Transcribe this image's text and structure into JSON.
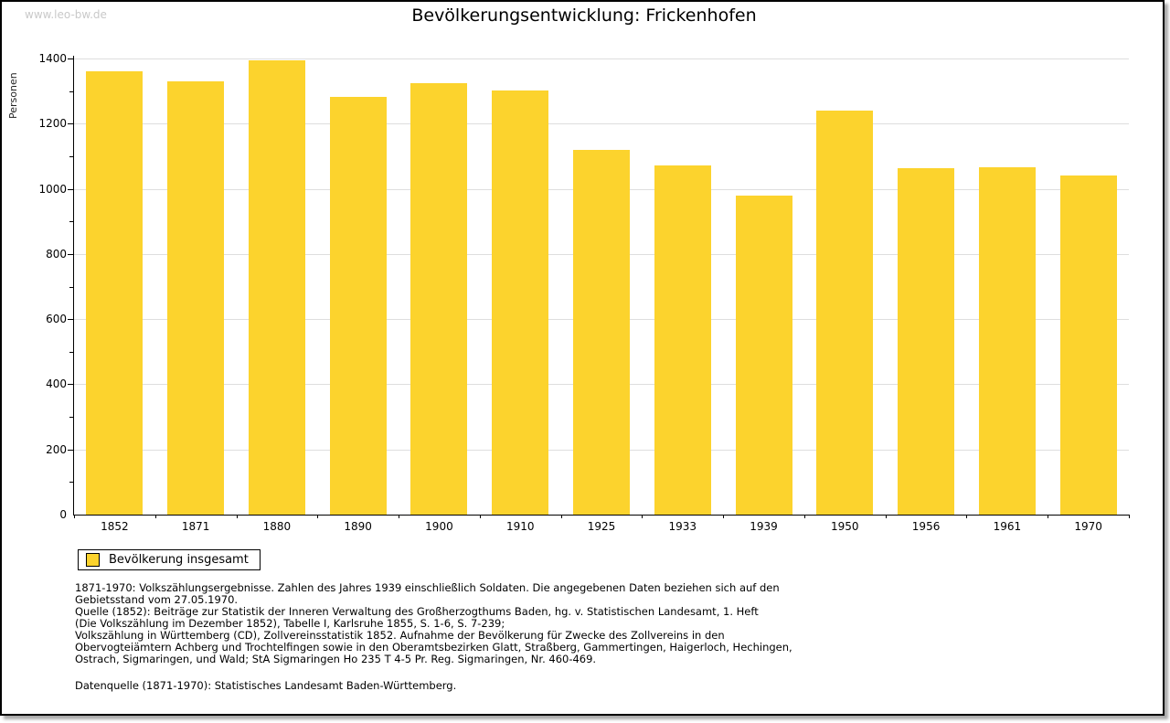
{
  "page": {
    "watermark": "www.leo-bw.de",
    "title": "Bevölkerungsentwicklung: Frickenhofen"
  },
  "chart_data": {
    "type": "bar",
    "title": "Bevölkerungsentwicklung: Frickenhofen",
    "ylabel": "Personen",
    "xlabel": "",
    "categories": [
      "1852",
      "1871",
      "1880",
      "1890",
      "1900",
      "1910",
      "1925",
      "1933",
      "1939",
      "1950",
      "1956",
      "1961",
      "1970"
    ],
    "values": [
      1360,
      1330,
      1395,
      1283,
      1325,
      1302,
      1120,
      1071,
      978,
      1240,
      1062,
      1065,
      1042
    ],
    "ylim": [
      0,
      1400
    ],
    "ytick_step": 200,
    "yminor_step": 100,
    "grid": true,
    "bar_color": "#fcd32d",
    "legend": {
      "label": "Bevölkerung insgesamt",
      "color": "#fcd32d",
      "position": "bottom-left"
    }
  },
  "footnotes": {
    "lines": [
      "1871-1970: Volkszählungsergebnisse. Zahlen des Jahres 1939 einschließlich Soldaten. Die angegebenen Daten beziehen sich auf den",
      "Gebietsstand vom 27.05.1970.",
      "Quelle (1852): Beiträge zur Statistik der Inneren Verwaltung des Großherzogthums Baden, hg. v. Statistischen Landesamt, 1. Heft",
      "(Die Volkszählung im Dezember 1852), Tabelle I, Karlsruhe 1855, S. 1-6, S. 7-239;",
      "Volkszählung in Württemberg (CD), Zollvereinsstatistik 1852. Aufnahme der Bevölkerung für Zwecke des Zollvereins in den",
      "Obervogteiämtern Achberg und Trochtelfingen sowie in den Oberamtsbezirken Glatt, Straßberg, Gammertingen, Haigerloch, Hechingen,",
      "Ostrach, Sigmaringen, und Wald; StA Sigmaringen Ho 235 T 4-5 Pr. Reg. Sigmaringen, Nr. 460-469."
    ],
    "datasource": "Datenquelle (1871-1970): Statistisches Landesamt Baden-Württemberg."
  }
}
